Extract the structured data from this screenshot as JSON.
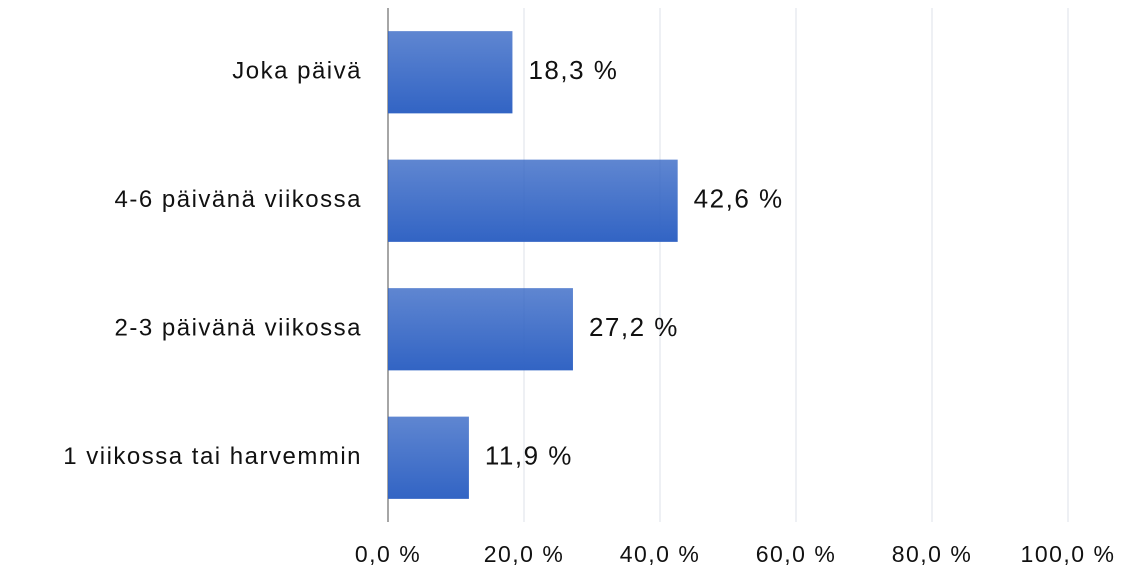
{
  "chart_data": {
    "type": "bar",
    "orientation": "horizontal",
    "categories": [
      "Joka päivä",
      "4-6 päivänä viikossa",
      "2-3 päivänä viikossa",
      "1 viikossa tai harvemmin"
    ],
    "values": [
      18.3,
      42.6,
      27.2,
      11.9
    ],
    "value_labels": [
      "18,3 %",
      "42,6 %",
      "27,2 %",
      "11,9 %"
    ],
    "color": "#3264c4",
    "xlim": [
      0,
      100
    ],
    "xticks": [
      {
        "value": 0,
        "label": "0,0 %"
      },
      {
        "value": 20,
        "label": "20,0 %"
      },
      {
        "value": 40,
        "label": "40,0 %"
      },
      {
        "value": 60,
        "label": "60,0 %"
      },
      {
        "value": 80,
        "label": "80,0 %"
      },
      {
        "value": 100,
        "label": "100,0 %"
      }
    ],
    "grid": true
  }
}
